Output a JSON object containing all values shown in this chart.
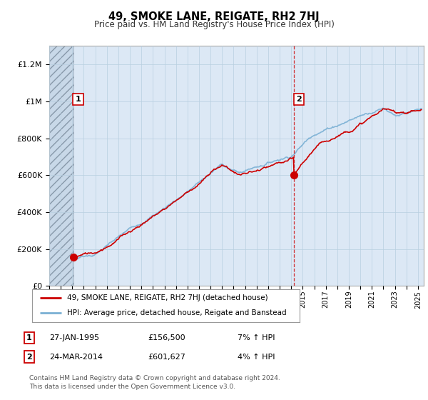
{
  "title": "49, SMOKE LANE, REIGATE, RH2 7HJ",
  "subtitle": "Price paid vs. HM Land Registry's House Price Index (HPI)",
  "ylim": [
    0,
    1300000
  ],
  "yticks": [
    0,
    200000,
    400000,
    600000,
    800000,
    1000000,
    1200000
  ],
  "ytick_labels": [
    "£0",
    "£200K",
    "£400K",
    "£600K",
    "£800K",
    "£1M",
    "£1.2M"
  ],
  "xmin": 1993,
  "xmax": 2025.5,
  "hatch_region_end_year": 1995.08,
  "vline_year": 2014.23,
  "point1": {
    "year": 1995.08,
    "value": 156500,
    "label": "1"
  },
  "point2": {
    "year": 2014.23,
    "value": 601627,
    "label": "2"
  },
  "legend_entries": [
    {
      "label": "49, SMOKE LANE, REIGATE, RH2 7HJ (detached house)",
      "color": "#cc0000",
      "lw": 1.5
    },
    {
      "label": "HPI: Average price, detached house, Reigate and Banstead",
      "color": "#7ab0d4",
      "lw": 1.5
    }
  ],
  "table_rows": [
    {
      "num": "1",
      "date": "27-JAN-1995",
      "price": "£156,500",
      "hpi": "7% ↑ HPI"
    },
    {
      "num": "2",
      "date": "24-MAR-2014",
      "price": "£601,627",
      "hpi": "4% ↑ HPI"
    }
  ],
  "footnote": "Contains HM Land Registry data © Crown copyright and database right 2024.\nThis data is licensed under the Open Government Licence v3.0.",
  "background_color": "#ffffff",
  "plot_bg_color": "#dce8f5",
  "grid_color": "#b8cfe0",
  "vline_color": "#cc0000",
  "hatch_bg": "#c8d8e8"
}
